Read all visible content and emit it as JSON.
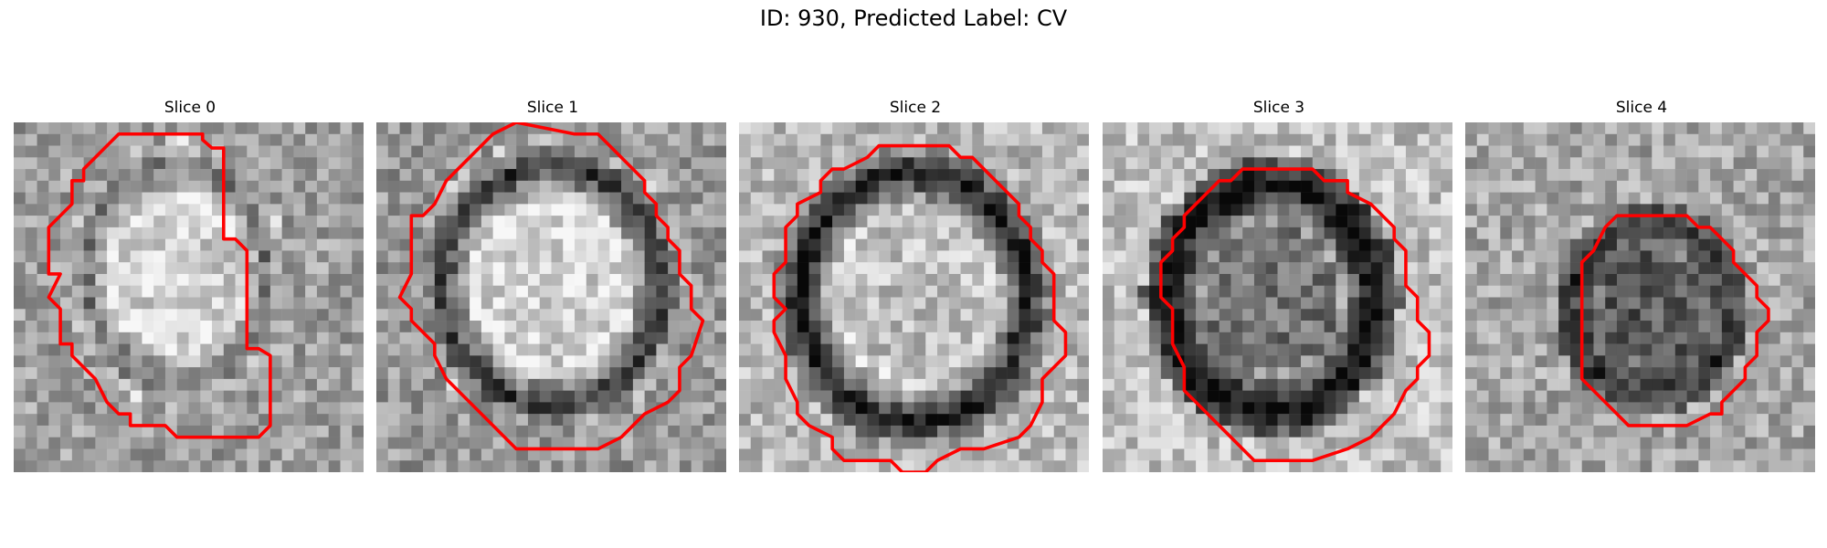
{
  "figure": {
    "title": "ID: 930, Predicted Label: CV",
    "colors": {
      "contour": "#ff0000",
      "cmap_dark": "#000000",
      "cmap_light": "#ffffff"
    },
    "slices": [
      {
        "title": "Slice 0"
      },
      {
        "title": "Slice 1"
      },
      {
        "title": "Slice 2"
      },
      {
        "title": "Slice 3"
      },
      {
        "title": "Slice 4"
      }
    ]
  }
}
